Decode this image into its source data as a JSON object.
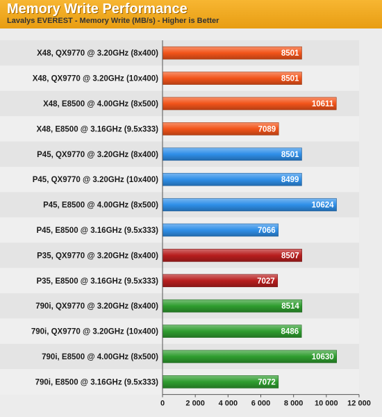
{
  "header": {
    "title": "Memory Write Performance",
    "subtitle": "Lavalys EVEREST - Memory Write (MB/s) - Higher is Better"
  },
  "colors": {
    "x48": "#f2541a",
    "p45": "#2f8fe8",
    "p35": "#b81e1e",
    "790i": "#2f9d2f"
  },
  "chart_data": {
    "type": "bar",
    "orientation": "horizontal",
    "title": "Memory Write Performance",
    "subtitle": "Lavalys EVEREST - Memory Write (MB/s) - Higher is Better",
    "xlabel": "",
    "ylabel": "",
    "xlim": [
      0,
      12000
    ],
    "xticks": [
      "0",
      "2 000",
      "4 000",
      "6 000",
      "8 000",
      "10 000",
      "12 000"
    ],
    "grid": false,
    "categories": [
      "X48, QX9770 @ 3.20GHz (8x400)",
      "X48, QX9770 @ 3.20GHz (10x400)",
      "X48, E8500 @ 4.00GHz (8x500)",
      "X48, E8500 @ 3.16GHz (9.5x333)",
      "P45, QX9770 @ 3.20GHz (8x400)",
      "P45, QX9770 @ 3.20GHz (10x400)",
      "P45, E8500 @ 4.00GHz (8x500)",
      "P45, E8500 @ 3.16GHz (9.5x333)",
      "P35, QX9770 @ 3.20GHz (8x400)",
      "P35, E8500 @ 3.16GHz (9.5x333)",
      "790i, QX9770 @ 3.20GHz (8x400)",
      "790i, QX9770 @ 3.20GHz (10x400)",
      "790i, E8500 @ 4.00GHz (8x500)",
      "790i, E8500 @ 3.16GHz (9.5x333)"
    ],
    "values": [
      8501,
      8501,
      10611,
      7089,
      8501,
      8499,
      10624,
      7066,
      8507,
      7027,
      8514,
      8486,
      10630,
      7072
    ],
    "labels": [
      "8501",
      "8501",
      "10611",
      "7089",
      "8501",
      "8499",
      "10624",
      "7066",
      "8507",
      "7027",
      "8514",
      "8486",
      "10630",
      "7072"
    ],
    "groups": [
      "x48",
      "x48",
      "x48",
      "x48",
      "p45",
      "p45",
      "p45",
      "p45",
      "p35",
      "p35",
      "790i",
      "790i",
      "790i",
      "790i"
    ]
  }
}
